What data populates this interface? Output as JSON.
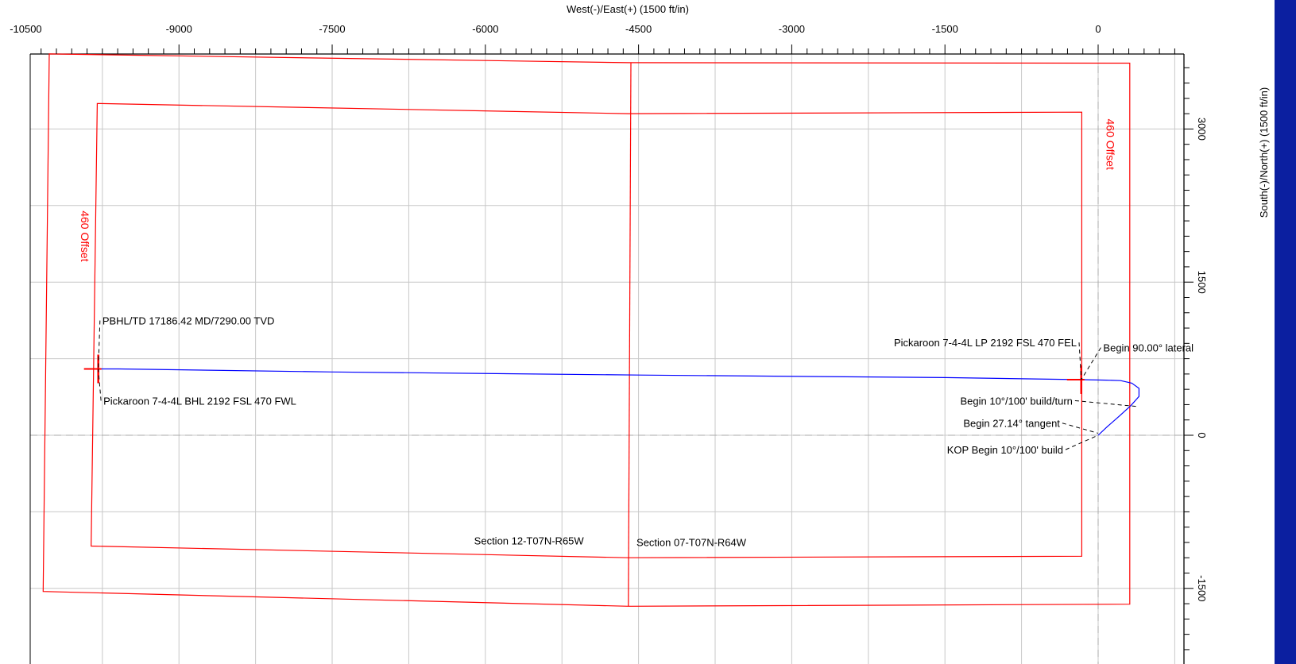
{
  "chart_data": {
    "type": "line",
    "title": "",
    "xlabel": "West(-)/East(+) (1500 ft/in)",
    "ylabel": "South(-)/North(+) (1500 ft/in)",
    "xlim": [
      -10500,
      1200
    ],
    "ylim": [
      -2200,
      3900
    ],
    "x_ticks": [
      -10500,
      -9000,
      -7500,
      -6000,
      -4500,
      -3000,
      -1500,
      0
    ],
    "x_tick_labels": [
      "-10500",
      "-9000",
      "-7500",
      "-6000",
      "-4500",
      "-3000",
      "-1500",
      "0"
    ],
    "y_ticks": [
      3000,
      1500,
      0,
      -1500
    ],
    "y_tick_labels": [
      "3000",
      "1500",
      "0",
      "-1500"
    ],
    "grid": true,
    "grid_step": 750,
    "colors": {
      "boundary": "#ff0000",
      "wellpath": "#0000ff",
      "grid": "#c8c8c8",
      "axis": "#000000",
      "right_band": "#0b1fa0"
    },
    "section_boundaries": [
      {
        "name": "outer-boundary",
        "points": [
          [
            -10270,
            3735
          ],
          [
            -4600,
            3650
          ],
          [
            310,
            3645
          ],
          [
            310,
            -1655
          ],
          [
            -4600,
            -1675
          ],
          [
            -10330,
            -1530
          ]
        ]
      },
      {
        "name": "inner-offset-boundary",
        "points": [
          [
            -9800,
            3250
          ],
          [
            -4600,
            3150
          ],
          [
            -160,
            3165
          ],
          [
            -160,
            -1185
          ],
          [
            -4600,
            -1200
          ],
          [
            -9860,
            -1085
          ]
        ]
      },
      {
        "name": "section-line",
        "points": [
          [
            -4575,
            3650
          ],
          [
            -4600,
            -1675
          ]
        ]
      }
    ],
    "wellpath": {
      "name": "Pickaroon 7-4-4L",
      "points": [
        [
          0,
          0
        ],
        [
          90,
          85
        ],
        [
          210,
          190
        ],
        [
          320,
          290
        ],
        [
          400,
          380
        ],
        [
          400,
          460
        ],
        [
          330,
          510
        ],
        [
          220,
          535
        ],
        [
          80,
          540
        ],
        [
          -160,
          545
        ],
        [
          -1500,
          565
        ],
        [
          -4500,
          590
        ],
        [
          -7500,
          620
        ],
        [
          -9590,
          650
        ],
        [
          -9780,
          650
        ]
      ]
    },
    "markers": [
      {
        "name": "bhl",
        "x": -9790,
        "y": 650
      },
      {
        "name": "lp",
        "x": -165,
        "y": 545
      }
    ],
    "annotations": [
      {
        "text": "PBHL/TD 17186.42 MD/7290.00 TVD",
        "x": -9750,
        "y": 1085,
        "point": [
          -9790,
          650
        ]
      },
      {
        "text": "Pickaroon 7-4-4L BHL 2192 FSL 470 FWL",
        "x": -9740,
        "y": 300,
        "point": [
          -9790,
          650
        ]
      },
      {
        "text": "Pickaroon 7-4-4L LP 2192 FSL 470 FEL",
        "x": -2000,
        "y": 870,
        "point": [
          -165,
          545
        ]
      },
      {
        "text": "Begin 90.00° lateral",
        "x": 50,
        "y": 820,
        "point": [
          -165,
          545
        ]
      },
      {
        "text": "Begin 10°/100' build/turn",
        "x": -1350,
        "y": 300,
        "point": [
          400,
          280
        ]
      },
      {
        "text": "Begin 27.14° tangent",
        "x": -1320,
        "y": 80,
        "point": [
          0,
          20
        ]
      },
      {
        "text": "KOP Begin 10°/100' build",
        "x": -1480,
        "y": -180,
        "point": [
          0,
          0
        ]
      },
      {
        "text": "Section 12-T07N-R65W",
        "x": -6110,
        "y": -1070
      },
      {
        "text": "Section 07-T07N-R64W",
        "x": -4520,
        "y": -1085
      },
      {
        "text": "460 Offset",
        "x": -9960,
        "y": 1950,
        "rotate": 90
      },
      {
        "text": "460 Offset",
        "x": 80,
        "y": 2850,
        "rotate": 90
      }
    ]
  }
}
